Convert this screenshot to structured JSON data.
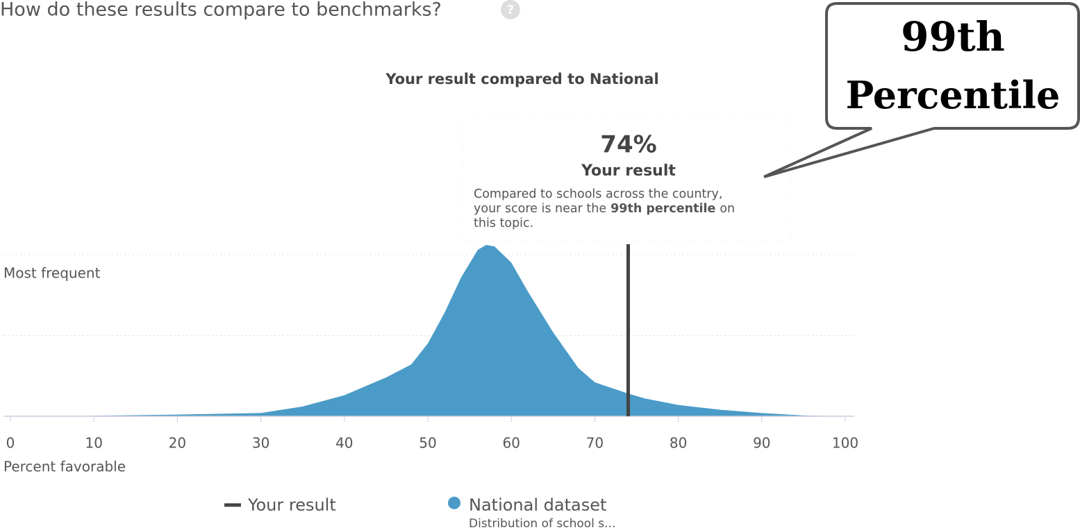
{
  "chart_data": {
    "type": "area",
    "question": "How do these results compare to benchmarks?",
    "title": "Your result compared to National",
    "xlabel": "Percent favorable",
    "x": [
      0,
      10,
      20,
      30,
      35,
      40,
      45,
      48,
      50,
      52,
      54,
      56,
      57,
      58,
      60,
      62,
      65,
      68,
      70,
      74,
      76,
      80,
      85,
      90,
      95,
      100
    ],
    "values": [
      0,
      0.3,
      1,
      2,
      6,
      13,
      24,
      32,
      45,
      64,
      86,
      103,
      106,
      105,
      95,
      77,
      52,
      30,
      21,
      14,
      11,
      7,
      4,
      2,
      0.5,
      0
    ],
    "color": "#4a9bc7",
    "xlim": [
      0,
      100
    ],
    "xticks": [
      0,
      10,
      20,
      30,
      40,
      50,
      60,
      70,
      80,
      90,
      100
    ],
    "ylim": [
      0,
      110
    ],
    "yticks": [
      {
        "value": 100,
        "label": "Most frequent"
      }
    ],
    "ygrid": [
      50,
      100
    ],
    "marker": {
      "name": "Your result",
      "value": 74,
      "value_label": "74%",
      "color": "#444444"
    },
    "description": {
      "line1": "Compared to schools across the country,",
      "line2_before": "your score is near the",
      "line2_bold": "99th percentile",
      "line2_after": "on",
      "line3": "this topic."
    },
    "series_name": "National dataset",
    "series_caption": "Distribution of school s...",
    "callout": [
      "99th",
      "Percentile"
    ]
  }
}
